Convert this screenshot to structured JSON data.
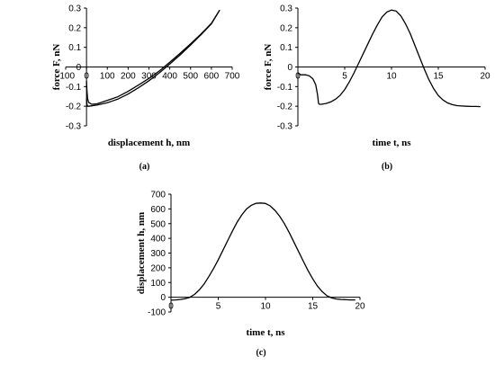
{
  "chart_data": [
    {
      "id": "a",
      "type": "line",
      "caption": "(a)",
      "xlabel": "displacement h, nm",
      "ylabel": "force F, nN",
      "xlim": [
        -100,
        700
      ],
      "ylim": [
        -0.3,
        0.3
      ],
      "xticks": [
        -100,
        0,
        100,
        200,
        300,
        400,
        500,
        600,
        700
      ],
      "yticks": [
        -0.3,
        -0.2,
        -0.1,
        0,
        0.1,
        0.2,
        0.3
      ],
      "xtick_labels": [
        "-100",
        "0",
        "100",
        "200",
        "300",
        "400",
        "500",
        "600",
        "700"
      ],
      "ytick_labels": [
        "-0.3",
        "-0.2",
        "-0.1",
        "0",
        "0.1",
        "0.2",
        "0.3"
      ],
      "grid": false,
      "series": [
        {
          "x": [
            0,
            2,
            5,
            10,
            25,
            50,
            100,
            150,
            200,
            250,
            300,
            350,
            400,
            450,
            500,
            550,
            600,
            640
          ],
          "y": [
            -0.07,
            -0.12,
            -0.16,
            -0.18,
            -0.19,
            -0.188,
            -0.17,
            -0.152,
            -0.124,
            -0.092,
            -0.058,
            -0.02,
            0.024,
            0.07,
            0.118,
            0.168,
            0.222,
            0.29
          ]
        },
        {
          "x": [
            0,
            2,
            5,
            10,
            25,
            50,
            100,
            150,
            200,
            250,
            300,
            350,
            400,
            450,
            500,
            550,
            600,
            640
          ],
          "y": [
            -0.16,
            -0.19,
            -0.2,
            -0.2,
            -0.198,
            -0.194,
            -0.182,
            -0.164,
            -0.138,
            -0.106,
            -0.07,
            -0.03,
            0.015,
            0.062,
            0.112,
            0.164,
            0.22,
            0.29
          ]
        }
      ]
    },
    {
      "id": "b",
      "type": "line",
      "caption": "(b)",
      "xlabel": "time t, ns",
      "ylabel": "force F, nN",
      "xlim": [
        0,
        20
      ],
      "ylim": [
        -0.3,
        0.3
      ],
      "xticks": [
        0,
        5,
        10,
        15,
        20
      ],
      "yticks": [
        -0.3,
        -0.2,
        -0.1,
        0,
        0.1,
        0.2,
        0.3
      ],
      "xtick_labels": [
        "0",
        "5",
        "10",
        "15",
        "20"
      ],
      "ytick_labels": [
        "-0.3",
        "-0.2",
        "-0.1",
        "0",
        "0.1",
        "0.2",
        "0.3"
      ],
      "grid": false,
      "series": [
        {
          "x": [
            0,
            0.3,
            0.8,
            1.2,
            1.6,
            1.9,
            2.1,
            2.2,
            2.3,
            2.5,
            3.0,
            3.5,
            4.0,
            4.5,
            5.0,
            5.5,
            6.0,
            6.5,
            7.0,
            7.5,
            8.0,
            8.5,
            9.0,
            9.5,
            10.0,
            10.5,
            11.0,
            11.5,
            12.0,
            12.5,
            13.0,
            13.5,
            14.0,
            14.5,
            15.0,
            15.5,
            16.0,
            16.5,
            17.0,
            17.5,
            18.0,
            18.5,
            19.0,
            19.5
          ],
          "y": [
            -0.03,
            -0.04,
            -0.04,
            -0.045,
            -0.06,
            -0.09,
            -0.14,
            -0.185,
            -0.19,
            -0.19,
            -0.186,
            -0.178,
            -0.165,
            -0.145,
            -0.115,
            -0.075,
            -0.03,
            0.02,
            0.07,
            0.12,
            0.17,
            0.215,
            0.255,
            0.28,
            0.29,
            0.285,
            0.26,
            0.22,
            0.17,
            0.11,
            0.05,
            -0.01,
            -0.065,
            -0.11,
            -0.145,
            -0.168,
            -0.183,
            -0.192,
            -0.197,
            -0.199,
            -0.2,
            -0.201,
            -0.201,
            -0.202
          ]
        }
      ]
    },
    {
      "id": "c",
      "type": "line",
      "caption": "(c)",
      "xlabel": "time t, ns",
      "ylabel": "displacement h, nm",
      "xlim": [
        0,
        20
      ],
      "ylim": [
        -100,
        700
      ],
      "xticks": [
        0,
        5,
        10,
        15,
        20
      ],
      "yticks": [
        -100,
        0,
        100,
        200,
        300,
        400,
        500,
        600,
        700
      ],
      "xtick_labels": [
        "0",
        "5",
        "10",
        "15",
        "20"
      ],
      "ytick_labels": [
        "-100",
        "0",
        "100",
        "200",
        "300",
        "400",
        "500",
        "600",
        "700"
      ],
      "grid": false,
      "series": [
        {
          "x": [
            0,
            0.5,
            1.0,
            1.5,
            2.0,
            2.5,
            3.0,
            3.5,
            4.0,
            4.5,
            5.0,
            5.5,
            6.0,
            6.5,
            7.0,
            7.5,
            8.0,
            8.5,
            9.0,
            9.5,
            10.0,
            10.5,
            11.0,
            11.5,
            12.0,
            12.5,
            13.0,
            13.5,
            14.0,
            14.5,
            15.0,
            15.5,
            16.0,
            16.5,
            17.0,
            17.5,
            18.0,
            18.5,
            19.0,
            19.5
          ],
          "y": [
            -20,
            -18,
            -15,
            -10,
            0,
            20,
            50,
            90,
            140,
            195,
            255,
            320,
            385,
            450,
            510,
            560,
            600,
            625,
            638,
            640,
            637,
            620,
            590,
            550,
            500,
            440,
            375,
            310,
            245,
            180,
            125,
            75,
            38,
            10,
            -5,
            -12,
            -15,
            -17,
            -18,
            -18
          ]
        }
      ]
    }
  ]
}
